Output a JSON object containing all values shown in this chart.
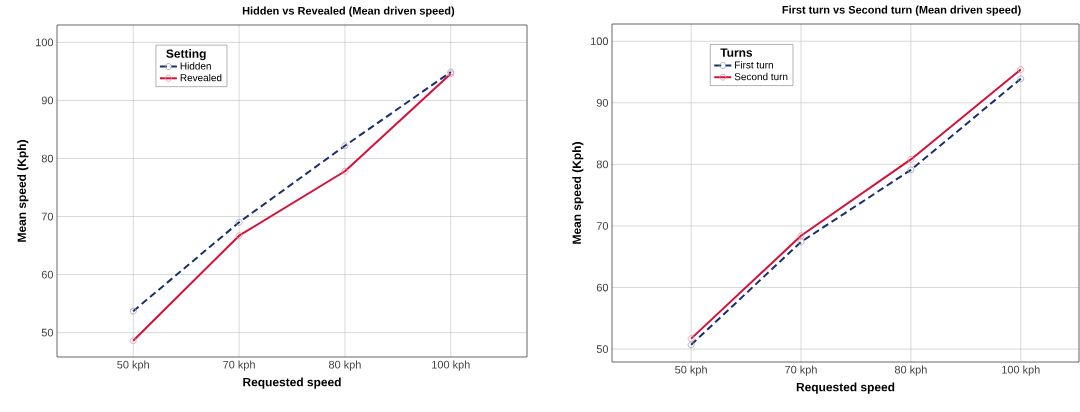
{
  "chart_data": [
    {
      "type": "line",
      "title": "Hidden vs Revealed (Mean driven speed)",
      "xlabel": "Requested speed",
      "ylabel": "Mean speed (Kph)",
      "legend_title": "Setting",
      "categories": [
        "50 kph",
        "70 kph",
        "80 kph",
        "100 kph"
      ],
      "ylim": [
        45.8,
        103
      ],
      "yticks": [
        50,
        60,
        70,
        80,
        90,
        100
      ],
      "grid": true,
      "legend": "top left",
      "marker": "circle",
      "series": [
        {
          "name": "Hidden",
          "color": "#1a2f6e",
          "line_style": "dashed",
          "values": [
            53.7,
            69.0,
            82.2,
            94.9
          ]
        },
        {
          "name": "Revealed",
          "color": "#d5103a",
          "line_style": "solid",
          "values": [
            48.6,
            66.7,
            77.8,
            94.6
          ]
        }
      ]
    },
    {
      "type": "line",
      "title": "First turn vs Second turn (Mean driven speed)",
      "xlabel": "Requested speed",
      "ylabel": "Mean speed (Kph)",
      "legend_title": "Turns",
      "categories": [
        "50 kph",
        "70 kph",
        "80 kph",
        "100 kph"
      ],
      "ylim": [
        47.9,
        102.8
      ],
      "yticks": [
        50,
        60,
        70,
        80,
        90,
        100
      ],
      "grid": true,
      "legend": "top left",
      "marker": "circle",
      "series": [
        {
          "name": "First turn",
          "color": "#1a2f6e",
          "line_style": "dashed",
          "values": [
            50.7,
            67.4,
            79.1,
            93.9
          ]
        },
        {
          "name": "Second turn",
          "color": "#d5103a",
          "line_style": "solid",
          "values": [
            51.7,
            68.4,
            80.8,
            95.4
          ]
        }
      ]
    }
  ]
}
